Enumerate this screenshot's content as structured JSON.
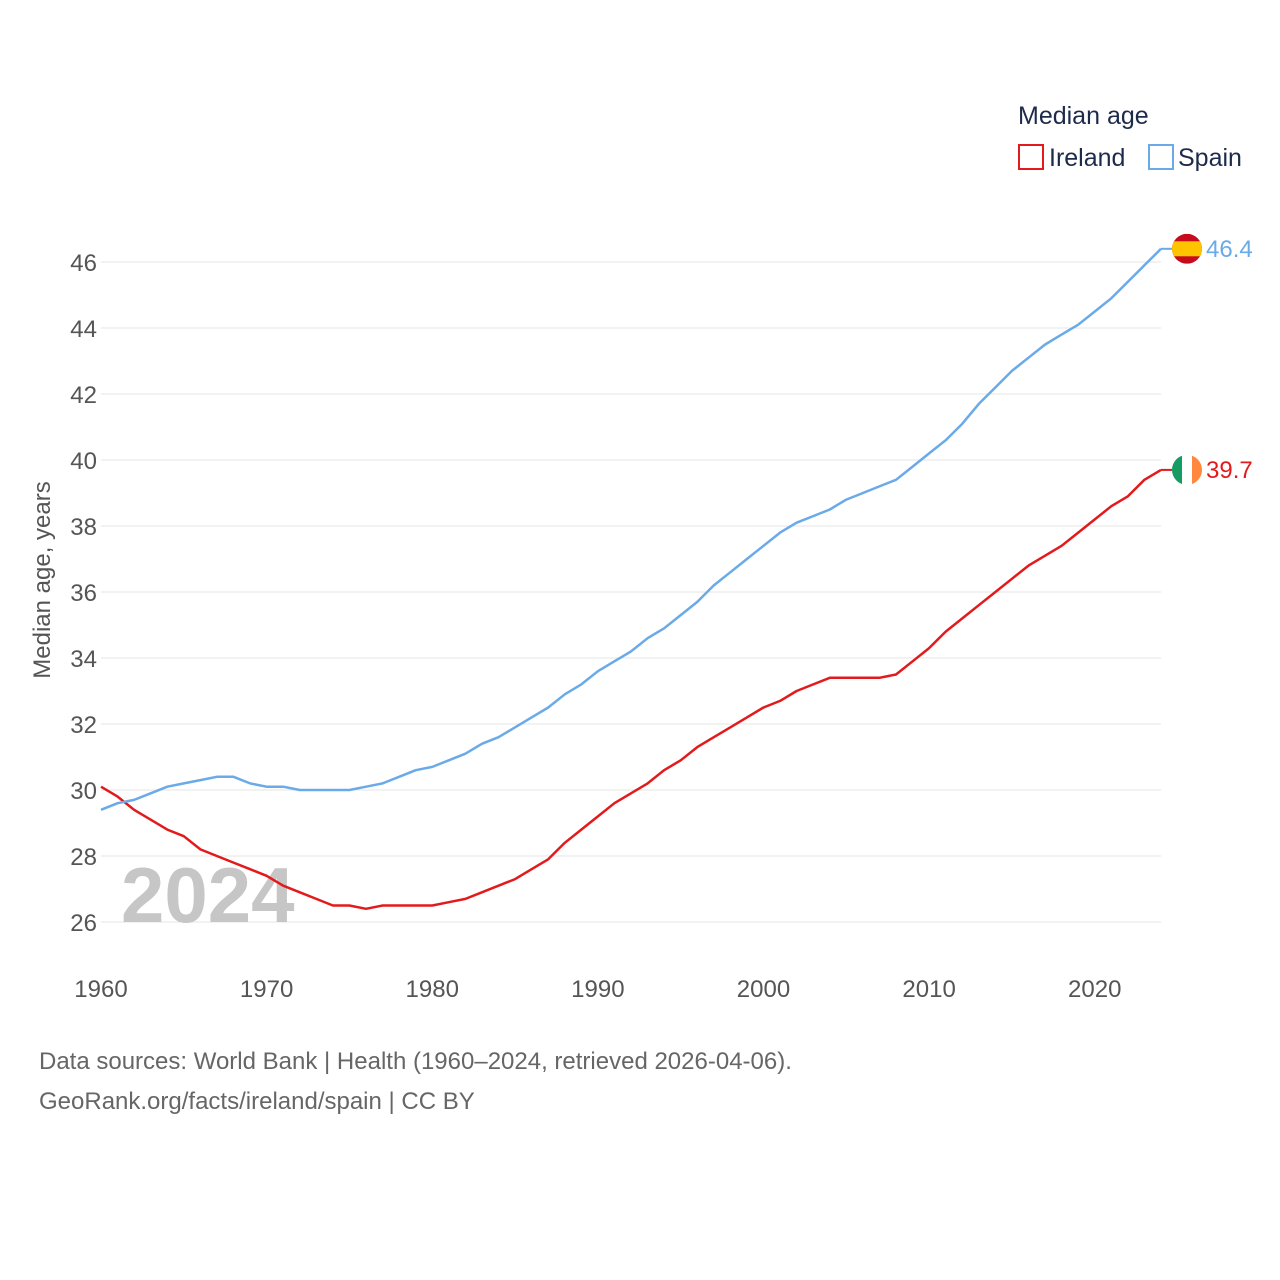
{
  "chart_data": {
    "type": "line",
    "title": "",
    "xlabel": "",
    "ylabel": "Median age, years",
    "xlim": [
      1960,
      2024
    ],
    "ylim": [
      25,
      47
    ],
    "yticks": [
      26,
      28,
      30,
      32,
      34,
      36,
      38,
      40,
      42,
      44,
      46
    ],
    "xticks": [
      1960,
      1970,
      1980,
      1990,
      2000,
      2010,
      2020
    ],
    "grid": true,
    "legend": {
      "title": "Median age",
      "position": "top-right"
    },
    "current_year": "2024",
    "x": [
      1960,
      1961,
      1962,
      1963,
      1964,
      1965,
      1966,
      1967,
      1968,
      1969,
      1970,
      1971,
      1972,
      1973,
      1974,
      1975,
      1976,
      1977,
      1978,
      1979,
      1980,
      1981,
      1982,
      1983,
      1984,
      1985,
      1986,
      1987,
      1988,
      1989,
      1990,
      1991,
      1992,
      1993,
      1994,
      1995,
      1996,
      1997,
      1998,
      1999,
      2000,
      2001,
      2002,
      2003,
      2004,
      2005,
      2006,
      2007,
      2008,
      2009,
      2010,
      2011,
      2012,
      2013,
      2014,
      2015,
      2016,
      2017,
      2018,
      2019,
      2020,
      2021,
      2022,
      2023,
      2024
    ],
    "series": [
      {
        "name": "Ireland",
        "color": "#e31a1c",
        "end_label": "39.7",
        "flag": "ireland-flag",
        "values": [
          30.1,
          29.8,
          29.4,
          29.1,
          28.8,
          28.6,
          28.2,
          28.0,
          27.8,
          27.6,
          27.4,
          27.1,
          26.9,
          26.7,
          26.5,
          26.5,
          26.4,
          26.5,
          26.5,
          26.5,
          26.5,
          26.6,
          26.7,
          26.9,
          27.1,
          27.3,
          27.6,
          27.9,
          28.4,
          28.8,
          29.2,
          29.6,
          29.9,
          30.2,
          30.6,
          30.9,
          31.3,
          31.6,
          31.9,
          32.2,
          32.5,
          32.7,
          33.0,
          33.2,
          33.4,
          33.4,
          33.4,
          33.4,
          33.5,
          33.9,
          34.3,
          34.8,
          35.2,
          35.6,
          36.0,
          36.4,
          36.8,
          37.1,
          37.4,
          37.8,
          38.2,
          38.6,
          38.9,
          39.4,
          39.7
        ]
      },
      {
        "name": "Spain",
        "color": "#6aaae8",
        "end_label": "46.4",
        "flag": "spain-flag",
        "values": [
          29.4,
          29.6,
          29.7,
          29.9,
          30.1,
          30.2,
          30.3,
          30.4,
          30.4,
          30.2,
          30.1,
          30.1,
          30.0,
          30.0,
          30.0,
          30.0,
          30.1,
          30.2,
          30.4,
          30.6,
          30.7,
          30.9,
          31.1,
          31.4,
          31.6,
          31.9,
          32.2,
          32.5,
          32.9,
          33.2,
          33.6,
          33.9,
          34.2,
          34.6,
          34.9,
          35.3,
          35.7,
          36.2,
          36.6,
          37.0,
          37.4,
          37.8,
          38.1,
          38.3,
          38.5,
          38.8,
          39.0,
          39.2,
          39.4,
          39.8,
          40.2,
          40.6,
          41.1,
          41.7,
          42.2,
          42.7,
          43.1,
          43.5,
          43.8,
          44.1,
          44.5,
          44.9,
          45.4,
          45.9,
          46.4
        ]
      }
    ]
  },
  "footer": {
    "line1": "Data sources: World Bank | Health (1960–2024, retrieved 2026-04-06).",
    "line2": "GeoRank.org/facts/ireland/spain | CC BY"
  }
}
